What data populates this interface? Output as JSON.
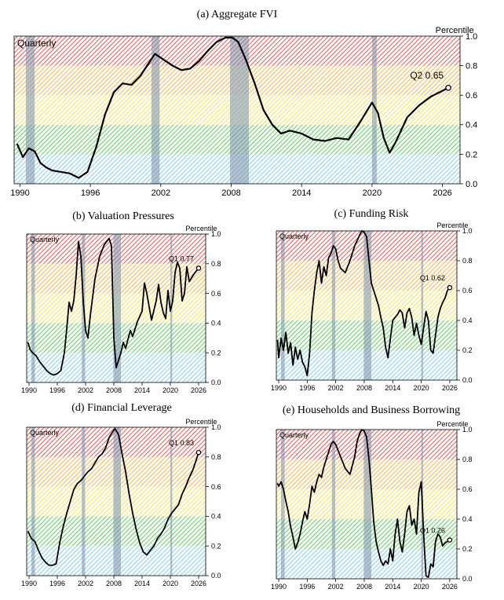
{
  "figure": {
    "charts": [
      {
        "panel_title": "(a) Aggregate FVI"
      },
      {
        "panel_title": "(b) Valuation Pressures"
      },
      {
        "panel_title": "(c) Funding Risk"
      },
      {
        "panel_title": "(d) Financial Leverage"
      },
      {
        "panel_title": "(e) Households and Business Borrowing"
      }
    ]
  },
  "chart_data": [
    {
      "type": "line",
      "title": "(a) Aggregate FVI",
      "ylabel": "Percentile",
      "corner_label": "Quarterly",
      "xlim": [
        1989.5,
        2027.5
      ],
      "ylim": [
        0,
        1
      ],
      "x_ticks": [
        "1990",
        "1996",
        "2002",
        "2008",
        "2014",
        "2020",
        "2026"
      ],
      "y_ticks": [
        "0.0",
        "0.2",
        "0.4",
        "0.6",
        "0.8",
        "1.0"
      ],
      "bands": [
        {
          "from": 0.0,
          "to": 0.2,
          "color": "#7ec8e8"
        },
        {
          "from": 0.2,
          "to": 0.4,
          "color": "#55c455"
        },
        {
          "from": 0.4,
          "to": 0.6,
          "color": "#f0e050"
        },
        {
          "from": 0.6,
          "to": 0.8,
          "color": "#f0b040"
        },
        {
          "from": 0.8,
          "to": 1.0,
          "color": "#e04848"
        }
      ],
      "recessions": [
        [
          1990.5,
          1991.25
        ],
        [
          2001.2,
          2001.9
        ],
        [
          2007.9,
          2009.5
        ],
        [
          2020.0,
          2020.4
        ]
      ],
      "annotation": "Q2 0.65",
      "end_marker": {
        "x": 2026.5,
        "y": 0.65
      },
      "x": [
        1989.75,
        1990.25,
        1990.75,
        1991.25,
        1991.75,
        1992.25,
        1992.75,
        1993.5,
        1994.25,
        1995,
        1995.75,
        1996.5,
        1997.25,
        1998,
        1998.75,
        1999.5,
        2000.25,
        2001,
        2001.5,
        2002.25,
        2003,
        2003.75,
        2004.5,
        2005.25,
        2006,
        2006.75,
        2007.5,
        2008.1,
        2008.6,
        2009.25,
        2010,
        2010.75,
        2011.5,
        2012.25,
        2013,
        2014,
        2015,
        2016,
        2017,
        2018,
        2019,
        2020,
        2020.5,
        2021,
        2021.5,
        2022,
        2023,
        2024,
        2025,
        2026.5
      ],
      "y": [
        0.27,
        0.18,
        0.24,
        0.22,
        0.14,
        0.11,
        0.09,
        0.08,
        0.07,
        0.04,
        0.08,
        0.25,
        0.47,
        0.62,
        0.68,
        0.67,
        0.73,
        0.82,
        0.88,
        0.84,
        0.8,
        0.77,
        0.78,
        0.83,
        0.9,
        0.96,
        0.99,
        0.99,
        0.96,
        0.84,
        0.68,
        0.5,
        0.4,
        0.34,
        0.36,
        0.34,
        0.3,
        0.29,
        0.31,
        0.3,
        0.42,
        0.55,
        0.48,
        0.31,
        0.21,
        0.28,
        0.45,
        0.53,
        0.59,
        0.65
      ]
    },
    {
      "type": "line",
      "title": "(b) Valuation Pressures",
      "ylabel": "Percentile",
      "corner_label": "Quarterly",
      "xlim": [
        1989.5,
        2027.5
      ],
      "ylim": [
        0,
        1
      ],
      "x_ticks": [
        "1990",
        "1996",
        "2002",
        "2008",
        "2014",
        "2020",
        "2026"
      ],
      "y_ticks": [
        "0.0",
        "0.2",
        "0.4",
        "0.6",
        "0.8",
        "1.0"
      ],
      "bands": [
        {
          "from": 0.0,
          "to": 0.2,
          "color": "#7ec8e8"
        },
        {
          "from": 0.2,
          "to": 0.4,
          "color": "#55c455"
        },
        {
          "from": 0.4,
          "to": 0.6,
          "color": "#f0e050"
        },
        {
          "from": 0.6,
          "to": 0.8,
          "color": "#f0b040"
        },
        {
          "from": 0.8,
          "to": 1.0,
          "color": "#e04848"
        }
      ],
      "recessions": [
        [
          1990.5,
          1991.25
        ],
        [
          2001.2,
          2001.9
        ],
        [
          2007.9,
          2009.5
        ],
        [
          2020.0,
          2020.4
        ]
      ],
      "annotation": "Q1 0.77",
      "end_marker": {
        "x": 2026,
        "y": 0.77
      },
      "x": [
        1989.75,
        1990.25,
        1990.75,
        1991.5,
        1992.25,
        1993,
        1993.75,
        1994.5,
        1995.25,
        1996,
        1996.75,
        1997.5,
        1998,
        1998.5,
        1999,
        1999.5,
        2000,
        2000.5,
        2001,
        2001.5,
        2002,
        2002.5,
        2003,
        2004,
        2005,
        2006,
        2007,
        2007.5,
        2008,
        2008.5,
        2009,
        2009.5,
        2010,
        2010.5,
        2011,
        2011.5,
        2012,
        2013,
        2014,
        2014.5,
        2015,
        2016,
        2017,
        2017.5,
        2018,
        2018.5,
        2019,
        2019.5,
        2020,
        2020.5,
        2021,
        2021.5,
        2022,
        2022.5,
        2023,
        2023.5,
        2024,
        2025,
        2026
      ],
      "y": [
        0.27,
        0.22,
        0.2,
        0.18,
        0.14,
        0.11,
        0.08,
        0.06,
        0.05,
        0.06,
        0.08,
        0.2,
        0.36,
        0.54,
        0.48,
        0.55,
        0.72,
        0.95,
        0.85,
        0.55,
        0.35,
        0.3,
        0.45,
        0.7,
        0.85,
        0.93,
        0.97,
        0.92,
        0.3,
        0.1,
        0.15,
        0.2,
        0.27,
        0.23,
        0.29,
        0.35,
        0.31,
        0.41,
        0.48,
        0.67,
        0.6,
        0.42,
        0.55,
        0.66,
        0.54,
        0.47,
        0.43,
        0.62,
        0.48,
        0.55,
        0.74,
        0.81,
        0.77,
        0.55,
        0.6,
        0.78,
        0.68,
        0.73,
        0.77
      ]
    },
    {
      "type": "line",
      "title": "(c) Funding Risk",
      "ylabel": "Percentile",
      "corner_label": "Quarterly",
      "xlim": [
        1989.5,
        2027.5
      ],
      "ylim": [
        0,
        1
      ],
      "x_ticks": [
        "1990",
        "1996",
        "2002",
        "2008",
        "2014",
        "2020",
        "2026"
      ],
      "y_ticks": [
        "0.0",
        "0.2",
        "0.4",
        "0.6",
        "0.8",
        "1.0"
      ],
      "bands": [
        {
          "from": 0.0,
          "to": 0.2,
          "color": "#7ec8e8"
        },
        {
          "from": 0.2,
          "to": 0.4,
          "color": "#55c455"
        },
        {
          "from": 0.4,
          "to": 0.6,
          "color": "#f0e050"
        },
        {
          "from": 0.6,
          "to": 0.8,
          "color": "#f0b040"
        },
        {
          "from": 0.8,
          "to": 1.0,
          "color": "#e04848"
        }
      ],
      "recessions": [
        [
          1990.5,
          1991.25
        ],
        [
          2001.2,
          2001.9
        ],
        [
          2007.9,
          2009.5
        ],
        [
          2020.0,
          2020.4
        ]
      ],
      "annotation": "Q1 0.62",
      "end_marker": {
        "x": 2026,
        "y": 0.62
      },
      "x": [
        1989.75,
        1990,
        1990.5,
        1991,
        1991.5,
        1992,
        1992.5,
        1993,
        1993.5,
        1994,
        1994.5,
        1995,
        1995.5,
        1996,
        1996.5,
        1997,
        1997.5,
        1998,
        1998.5,
        1999,
        1999.5,
        2000,
        2000.5,
        2001,
        2001.5,
        2002,
        2002.5,
        2003,
        2004,
        2005,
        2006,
        2007,
        2007.5,
        2008,
        2008.5,
        2009,
        2009.5,
        2010,
        2010.5,
        2011,
        2011.5,
        2012,
        2012.5,
        2013,
        2013.5,
        2014,
        2014.5,
        2015,
        2015.5,
        2016,
        2016.5,
        2017,
        2017.5,
        2018,
        2018.5,
        2019,
        2019.5,
        2020,
        2020.5,
        2021,
        2021.5,
        2022,
        2022.5,
        2023,
        2023.5,
        2024,
        2024.5,
        2025,
        2025.5,
        2026
      ],
      "y": [
        0.27,
        0.15,
        0.28,
        0.2,
        0.32,
        0.18,
        0.25,
        0.1,
        0.22,
        0.14,
        0.2,
        0.12,
        0.09,
        0.03,
        0.18,
        0.45,
        0.6,
        0.72,
        0.8,
        0.65,
        0.76,
        0.7,
        0.82,
        0.85,
        0.9,
        0.88,
        0.8,
        0.75,
        0.72,
        0.8,
        0.9,
        0.97,
        1.0,
        0.99,
        0.96,
        0.8,
        0.65,
        0.6,
        0.55,
        0.5,
        0.42,
        0.35,
        0.22,
        0.15,
        0.28,
        0.4,
        0.42,
        0.44,
        0.47,
        0.45,
        0.35,
        0.45,
        0.48,
        0.42,
        0.3,
        0.38,
        0.3,
        0.24,
        0.35,
        0.46,
        0.4,
        0.2,
        0.18,
        0.3,
        0.42,
        0.48,
        0.52,
        0.55,
        0.6,
        0.62
      ]
    },
    {
      "type": "line",
      "title": "(d) Financial Leverage",
      "ylabel": "Percentile",
      "corner_label": "Quarterly",
      "xlim": [
        1989.5,
        2027.5
      ],
      "ylim": [
        0,
        1
      ],
      "x_ticks": [
        "1990",
        "1996",
        "2002",
        "2008",
        "2014",
        "2020",
        "2026"
      ],
      "y_ticks": [
        "0.0",
        "0.2",
        "0.4",
        "0.6",
        "0.8",
        "1.0"
      ],
      "bands": [
        {
          "from": 0.0,
          "to": 0.2,
          "color": "#7ec8e8"
        },
        {
          "from": 0.2,
          "to": 0.4,
          "color": "#55c455"
        },
        {
          "from": 0.4,
          "to": 0.6,
          "color": "#f0e050"
        },
        {
          "from": 0.6,
          "to": 0.8,
          "color": "#f0b040"
        },
        {
          "from": 0.8,
          "to": 1.0,
          "color": "#e04848"
        }
      ],
      "recessions": [
        [
          1990.5,
          1991.25
        ],
        [
          2001.2,
          2001.9
        ],
        [
          2007.9,
          2009.5
        ],
        [
          2020.0,
          2020.4
        ]
      ],
      "annotation": "Q1 0.83",
      "end_marker": {
        "x": 2026,
        "y": 0.83
      },
      "x": [
        1989.75,
        1990.5,
        1991.25,
        1992,
        1992.75,
        1993.5,
        1994.25,
        1995,
        1995.75,
        1996.5,
        1997.25,
        1998,
        1998.75,
        1999.5,
        2000.25,
        2001,
        2001.75,
        2002.5,
        2003.25,
        2004,
        2004.75,
        2005.5,
        2006.25,
        2007,
        2007.75,
        2008.25,
        2009,
        2009.75,
        2010.5,
        2011.25,
        2012,
        2012.75,
        2013.5,
        2014.25,
        2015,
        2015.75,
        2016.5,
        2017.25,
        2018,
        2018.75,
        2019.5,
        2020.25,
        2021,
        2021.75,
        2022.5,
        2023.25,
        2024,
        2024.75,
        2025.5,
        2026
      ],
      "y": [
        0.3,
        0.25,
        0.23,
        0.17,
        0.12,
        0.09,
        0.07,
        0.07,
        0.08,
        0.22,
        0.33,
        0.42,
        0.5,
        0.58,
        0.62,
        0.64,
        0.67,
        0.7,
        0.72,
        0.76,
        0.8,
        0.82,
        0.86,
        0.93,
        0.97,
        0.99,
        0.95,
        0.82,
        0.7,
        0.55,
        0.42,
        0.31,
        0.22,
        0.16,
        0.14,
        0.17,
        0.2,
        0.25,
        0.28,
        0.32,
        0.38,
        0.42,
        0.45,
        0.48,
        0.55,
        0.6,
        0.66,
        0.71,
        0.78,
        0.83
      ]
    },
    {
      "type": "line",
      "title": "(e) Households and Business Borrowing",
      "ylabel": "Percentile",
      "corner_label": "Quarterly",
      "xlim": [
        1989.5,
        2027.5
      ],
      "ylim": [
        0,
        1
      ],
      "x_ticks": [
        "1990",
        "1996",
        "2002",
        "2008",
        "2014",
        "2020",
        "2026"
      ],
      "y_ticks": [
        "0.0",
        "0.2",
        "0.4",
        "0.6",
        "0.8",
        "1.0"
      ],
      "bands": [
        {
          "from": 0.0,
          "to": 0.2,
          "color": "#7ec8e8"
        },
        {
          "from": 0.2,
          "to": 0.4,
          "color": "#55c455"
        },
        {
          "from": 0.4,
          "to": 0.6,
          "color": "#f0e050"
        },
        {
          "from": 0.6,
          "to": 0.8,
          "color": "#f0b040"
        },
        {
          "from": 0.8,
          "to": 1.0,
          "color": "#e04848"
        }
      ],
      "recessions": [
        [
          1990.5,
          1991.25
        ],
        [
          2001.2,
          2001.9
        ],
        [
          2007.9,
          2009.5
        ],
        [
          2020.0,
          2020.4
        ]
      ],
      "annotation": "Q1 0.26",
      "end_marker": {
        "x": 2026,
        "y": 0.26
      },
      "x": [
        1989.75,
        1990,
        1990.5,
        1991,
        1991.5,
        1992,
        1992.5,
        1993,
        1993.5,
        1994,
        1994.5,
        1995,
        1995.5,
        1996,
        1996.5,
        1997,
        1997.5,
        1998,
        1998.5,
        1999,
        1999.5,
        2000,
        2000.5,
        2001,
        2001.5,
        2002,
        2002.5,
        2003,
        2003.5,
        2004,
        2005,
        2006,
        2006.5,
        2007,
        2007.5,
        2008,
        2008.5,
        2009,
        2009.5,
        2010,
        2010.5,
        2011,
        2011.5,
        2012,
        2012.5,
        2013,
        2013.5,
        2014,
        2014.5,
        2015,
        2015.5,
        2016,
        2016.5,
        2017,
        2017.5,
        2018,
        2018.5,
        2019,
        2019.5,
        2020,
        2020.5,
        2021,
        2021.5,
        2022,
        2022.5,
        2023,
        2023.5,
        2024,
        2024.5,
        2025,
        2025.5,
        2026
      ],
      "y": [
        0.64,
        0.62,
        0.65,
        0.6,
        0.52,
        0.45,
        0.35,
        0.28,
        0.2,
        0.24,
        0.3,
        0.38,
        0.45,
        0.4,
        0.5,
        0.62,
        0.58,
        0.65,
        0.7,
        0.68,
        0.75,
        0.8,
        0.85,
        0.9,
        0.92,
        0.9,
        0.86,
        0.82,
        0.78,
        0.74,
        0.7,
        0.82,
        0.92,
        0.97,
        1.0,
        0.99,
        0.95,
        0.8,
        0.6,
        0.38,
        0.25,
        0.18,
        0.12,
        0.09,
        0.12,
        0.1,
        0.2,
        0.12,
        0.3,
        0.4,
        0.25,
        0.18,
        0.3,
        0.45,
        0.49,
        0.36,
        0.4,
        0.3,
        0.58,
        0.65,
        0.3,
        0.02,
        0.01,
        0.1,
        0.08,
        0.25,
        0.3,
        0.28,
        0.22,
        0.24,
        0.25,
        0.26
      ]
    }
  ]
}
